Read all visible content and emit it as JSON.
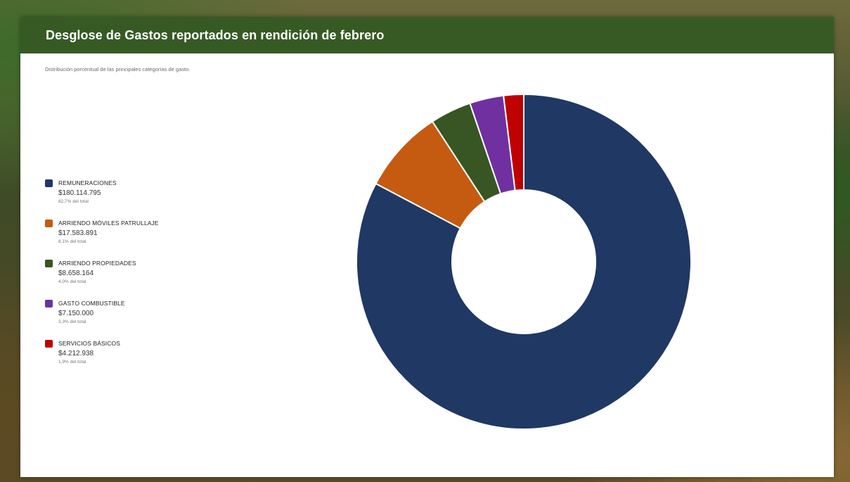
{
  "page": {
    "title": "Desglose de Gastos reportados en rendición de febrero",
    "subtitle": "Distribución porcentual de las principales categorías de gasto."
  },
  "legend": [
    {
      "name": "REMUNERACIONES",
      "amount": "$180.114.795",
      "pct": "82,7% del total",
      "color": "#1f3864"
    },
    {
      "name": "ARRIENDO MÓVILES PATRULLAJE",
      "amount": "$17.583.891",
      "pct": "8,1% del total",
      "color": "#c55a11"
    },
    {
      "name": "ARRIENDO PROPIEDADES",
      "amount": "$8.658.164",
      "pct": "4,0% del total",
      "color": "#375623"
    },
    {
      "name": "GASTO COMBUSTIBLE",
      "amount": "$7.150.000",
      "pct": "3,3% del total",
      "color": "#7030a0"
    },
    {
      "name": "SERVICIOS BÁSICOS",
      "amount": "$4.212.938",
      "pct": "1,9% del total",
      "color": "#c00000"
    }
  ],
  "chart_data": {
    "type": "pie",
    "title": "Desglose de Gastos reportados en rendición de febrero",
    "subtitle": "Distribución porcentual de las principales categorías de gasto.",
    "donut": true,
    "legend_position": "left",
    "categories": [
      "REMUNERACIONES",
      "ARRIENDO MÓVILES PATRULLAJE",
      "ARRIENDO PROPIEDADES",
      "GASTO COMBUSTIBLE",
      "SERVICIOS BÁSICOS"
    ],
    "values": [
      180114795,
      17583891,
      8658164,
      7150000,
      4212938
    ],
    "percentages": [
      82.7,
      8.1,
      4.0,
      3.3,
      1.9
    ],
    "colors": [
      "#1f3864",
      "#c55a11",
      "#375623",
      "#7030a0",
      "#c00000"
    ]
  }
}
